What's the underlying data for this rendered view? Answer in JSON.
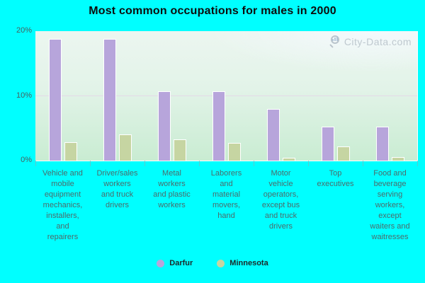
{
  "title": "Most common occupations for males in 2000",
  "watermark": {
    "text": "City-Data.com"
  },
  "colors": {
    "background": "#00ffff",
    "darfur_bar": "#b7a5db",
    "minnesota_bar": "#c6d5a2",
    "plot_gradient_top": "#ecf6f0",
    "plot_gradient_bottom": "#c9ecd2",
    "gridline": "#e3d6e6",
    "axis_text": "#4c6b6b",
    "title_text": "#0d0d0d"
  },
  "chart_data": {
    "type": "bar",
    "title": "Most common occupations for males in 2000",
    "categories": [
      "Vehicle and mobile equipment mechanics, installers, and repairers",
      "Driver/sales workers and truck drivers",
      "Metal workers and plastic workers",
      "Laborers and material movers, hand",
      "Motor vehicle operators, except bus and truck drivers",
      "Top executives",
      "Food and beverage serving workers, except waiters and waitresses"
    ],
    "category_lines": [
      [
        "Vehicle and",
        "mobile",
        "equipment",
        "mechanics,",
        "installers,",
        "and",
        "repairers"
      ],
      [
        "Driver/sales",
        "workers",
        "and truck",
        "drivers"
      ],
      [
        "Metal",
        "workers",
        "and plastic",
        "workers"
      ],
      [
        "Laborers",
        "and",
        "material",
        "movers,",
        "hand"
      ],
      [
        "Motor",
        "vehicle",
        "operators,",
        "except bus",
        "and truck",
        "drivers"
      ],
      [
        "Top",
        "executives"
      ],
      [
        "Food and",
        "beverage",
        "serving",
        "workers,",
        "except",
        "waiters and",
        "waitresses"
      ]
    ],
    "series": [
      {
        "name": "Darfur",
        "color": "#b7a5db",
        "values": [
          18.8,
          18.8,
          10.7,
          10.7,
          8.0,
          5.3,
          5.3
        ]
      },
      {
        "name": "Minnesota",
        "color": "#c6d5a2",
        "values": [
          2.8,
          4.0,
          3.3,
          2.7,
          0.4,
          2.2,
          0.6
        ]
      }
    ],
    "ylim": [
      0,
      20
    ],
    "y_ticks": [
      {
        "value": 0,
        "label": "0%"
      },
      {
        "value": 10,
        "label": "10%"
      },
      {
        "value": 20,
        "label": "20%"
      }
    ],
    "grid": "horizontal line at 10% only",
    "legend_position": "bottom",
    "xlabel": "",
    "ylabel": ""
  }
}
